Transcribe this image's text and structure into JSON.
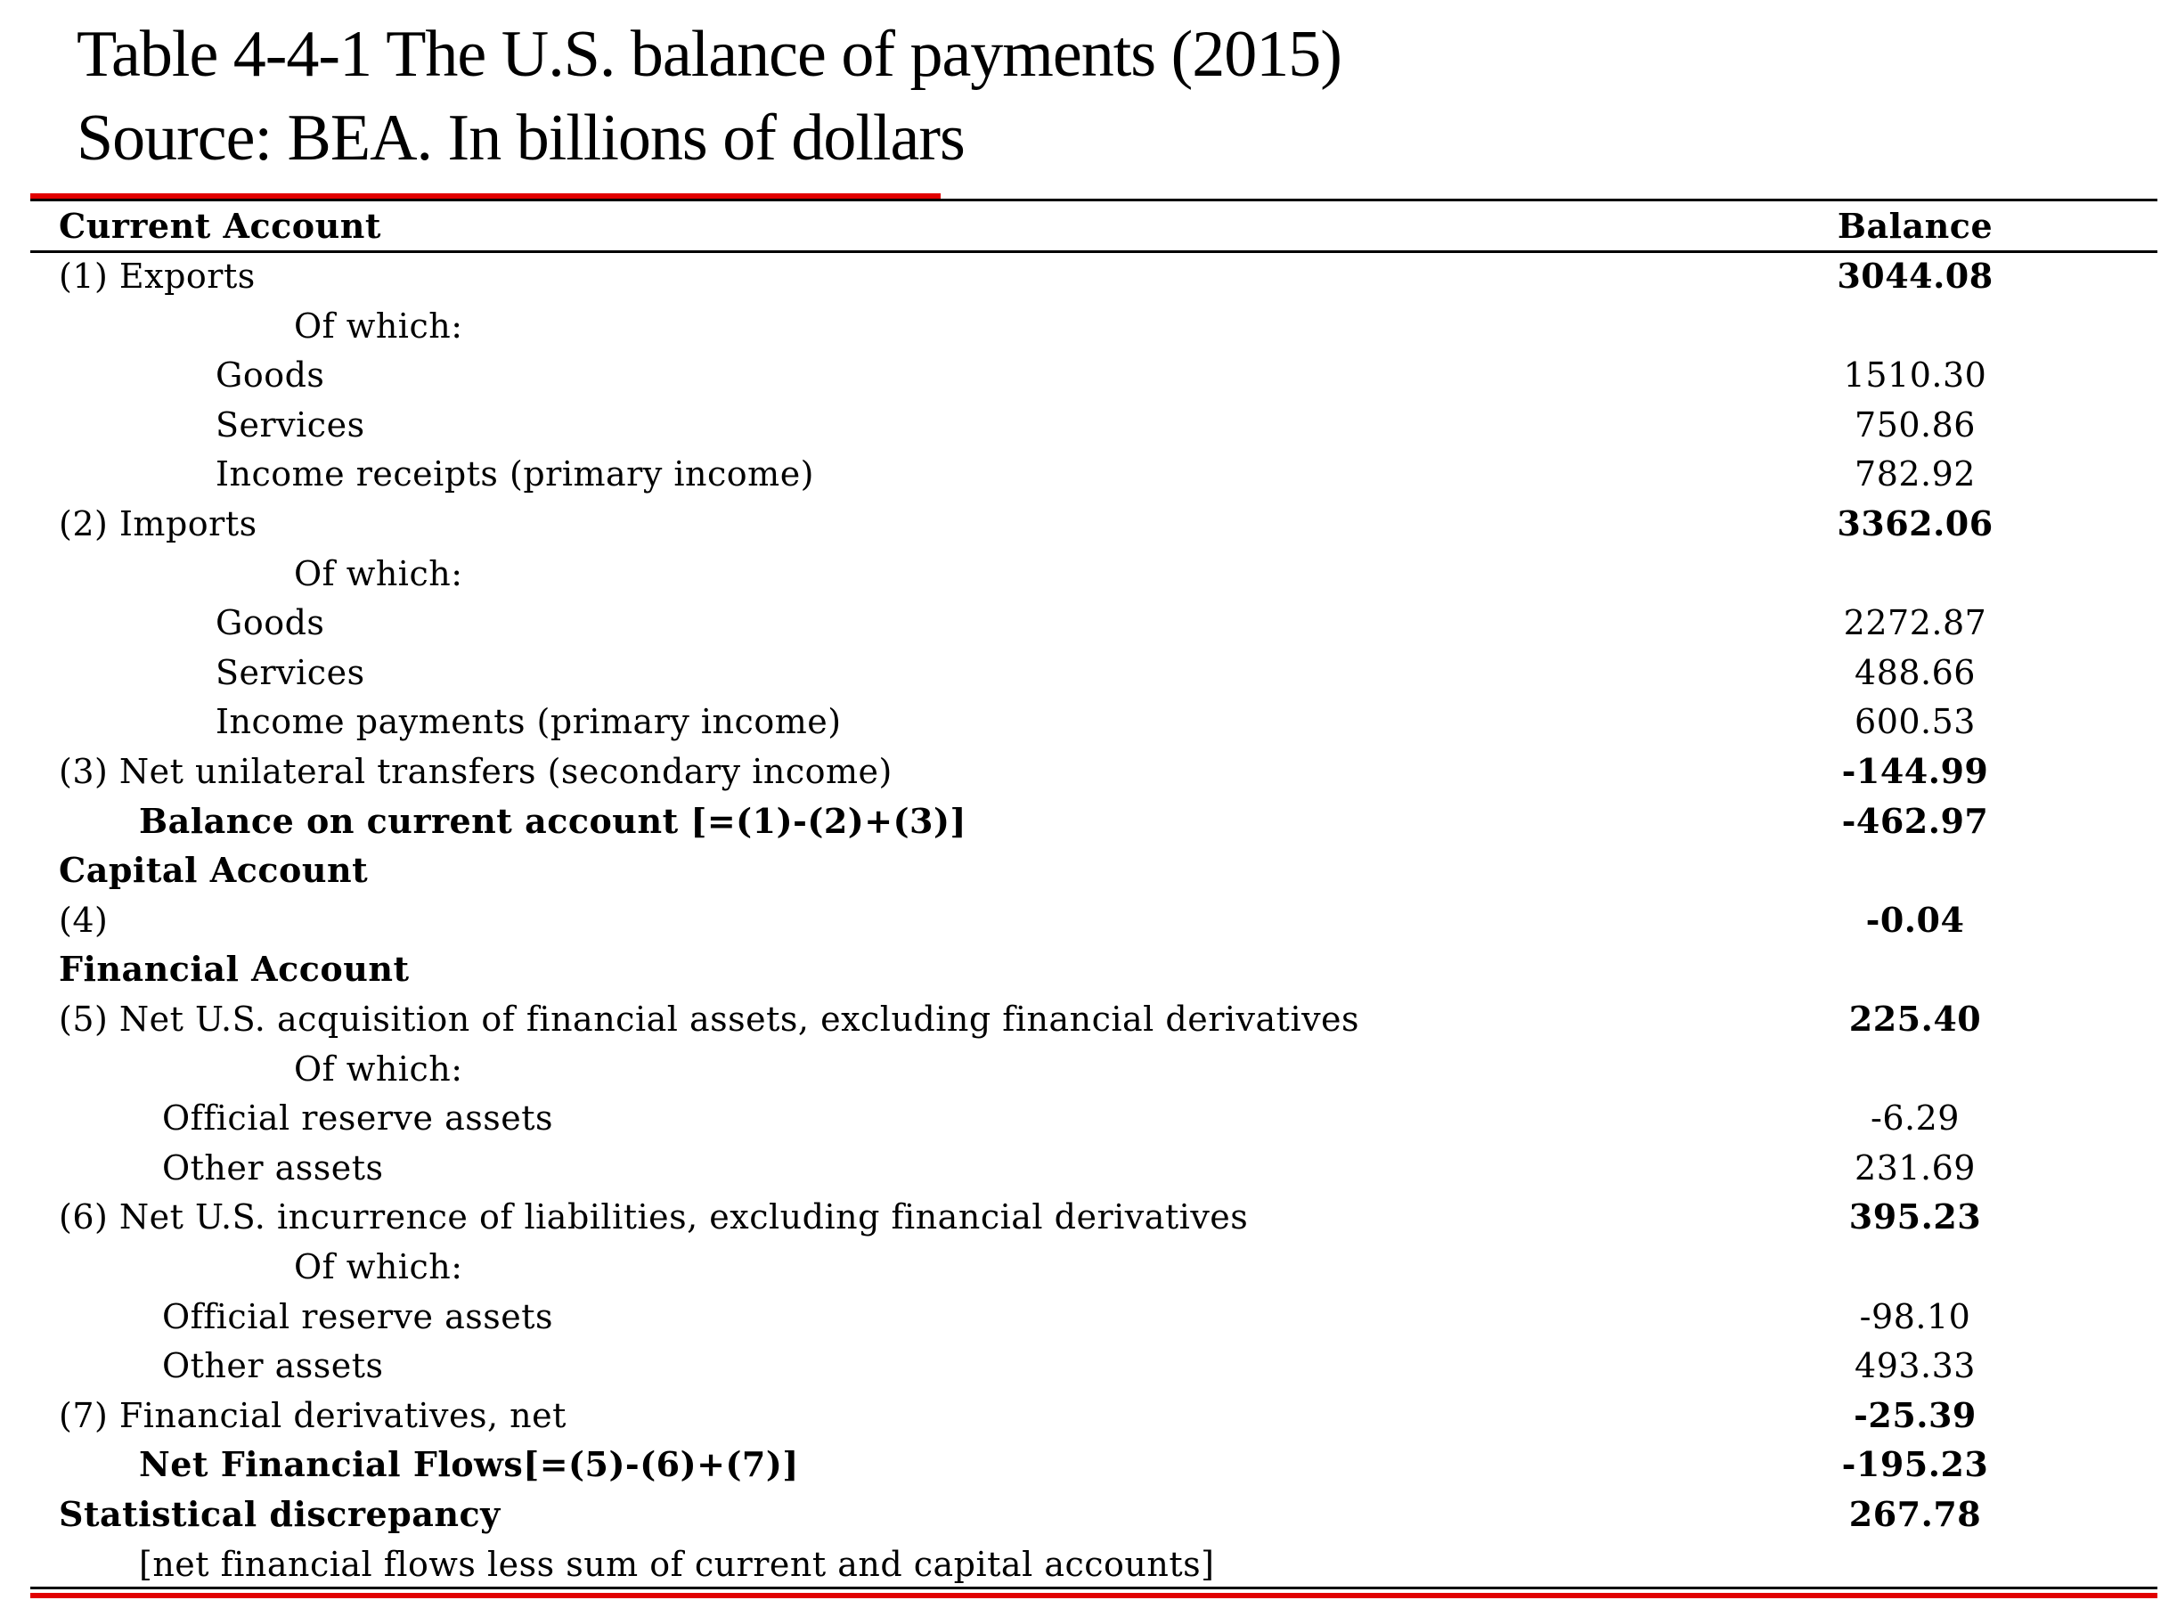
{
  "title": {
    "line1": "Table 4-4-1 The U.S. balance of payments (2015)",
    "line2": "Source: BEA. In billions of dollars"
  },
  "header": {
    "label": "Current Account",
    "value": "Balance"
  },
  "rows": [
    {
      "label": "(1) Exports",
      "value": "3044.08",
      "indent": 0,
      "bold_label": false,
      "bold_value": true
    },
    {
      "label": "Of which:",
      "value": "",
      "indent": 4,
      "bold_label": false,
      "bold_value": false
    },
    {
      "label": "Goods",
      "value": "1510.30",
      "indent": 3,
      "bold_label": false,
      "bold_value": false
    },
    {
      "label": "Services",
      "value": "750.86",
      "indent": 3,
      "bold_label": false,
      "bold_value": false
    },
    {
      "label": "Income receipts (primary income)",
      "value": "782.92",
      "indent": 3,
      "bold_label": false,
      "bold_value": false
    },
    {
      "label": "(2) Imports",
      "value": "3362.06",
      "indent": 0,
      "bold_label": false,
      "bold_value": true
    },
    {
      "label": "Of which:",
      "value": "",
      "indent": 4,
      "bold_label": false,
      "bold_value": false
    },
    {
      "label": "Goods",
      "value": "2272.87",
      "indent": 3,
      "bold_label": false,
      "bold_value": false
    },
    {
      "label": "Services",
      "value": "488.66",
      "indent": 3,
      "bold_label": false,
      "bold_value": false
    },
    {
      "label": "Income payments (primary income)",
      "value": "600.53",
      "indent": 3,
      "bold_label": false,
      "bold_value": false
    },
    {
      "label": "(3) Net unilateral transfers (secondary income)",
      "value": "-144.99",
      "indent": 0,
      "bold_label": false,
      "bold_value": true
    },
    {
      "label": "Balance on current account [=(1)-(2)+(3)]",
      "value": "-462.97",
      "indent": 1,
      "bold_label": true,
      "bold_value": true
    },
    {
      "label": "Capital Account",
      "value": "",
      "indent": 0,
      "bold_label": true,
      "bold_value": false
    },
    {
      "label": "(4)",
      "value": "-0.04",
      "indent": 0,
      "bold_label": false,
      "bold_value": true
    },
    {
      "label": "Financial Account",
      "value": "",
      "indent": 0,
      "bold_label": true,
      "bold_value": false
    },
    {
      "label": "(5) Net U.S. acquisition of financial assets, excluding financial derivatives",
      "value": "225.40",
      "indent": 0,
      "bold_label": false,
      "bold_value": true
    },
    {
      "label": "Of which:",
      "value": "",
      "indent": 4,
      "bold_label": false,
      "bold_value": false
    },
    {
      "label": "Official reserve assets",
      "value": "-6.29",
      "indent": 2,
      "bold_label": false,
      "bold_value": false
    },
    {
      "label": "Other assets",
      "value": "231.69",
      "indent": 2,
      "bold_label": false,
      "bold_value": false
    },
    {
      "label": "(6) Net U.S. incurrence of liabilities, excluding financial derivatives",
      "value": "395.23",
      "indent": 0,
      "bold_label": false,
      "bold_value": true
    },
    {
      "label": "Of which:",
      "value": "",
      "indent": 4,
      "bold_label": false,
      "bold_value": false
    },
    {
      "label": "Official reserve assets",
      "value": "-98.10",
      "indent": 2,
      "bold_label": false,
      "bold_value": false
    },
    {
      "label": "Other assets",
      "value": "493.33",
      "indent": 2,
      "bold_label": false,
      "bold_value": false
    },
    {
      "label": "(7) Financial derivatives, net",
      "value": "-25.39",
      "indent": 0,
      "bold_label": false,
      "bold_value": true
    },
    {
      "label": "Net Financial Flows[=(5)-(6)+(7)]",
      "value": "-195.23",
      "indent": 1,
      "bold_label": true,
      "bold_value": true
    },
    {
      "label": "Statistical discrepancy",
      "value": "267.78",
      "indent": 0,
      "bold_label": true,
      "bold_value": true
    },
    {
      "label": "[net financial flows less sum of current and capital accounts]",
      "value": "",
      "indent": 1,
      "bold_label": false,
      "bold_value": false
    }
  ]
}
